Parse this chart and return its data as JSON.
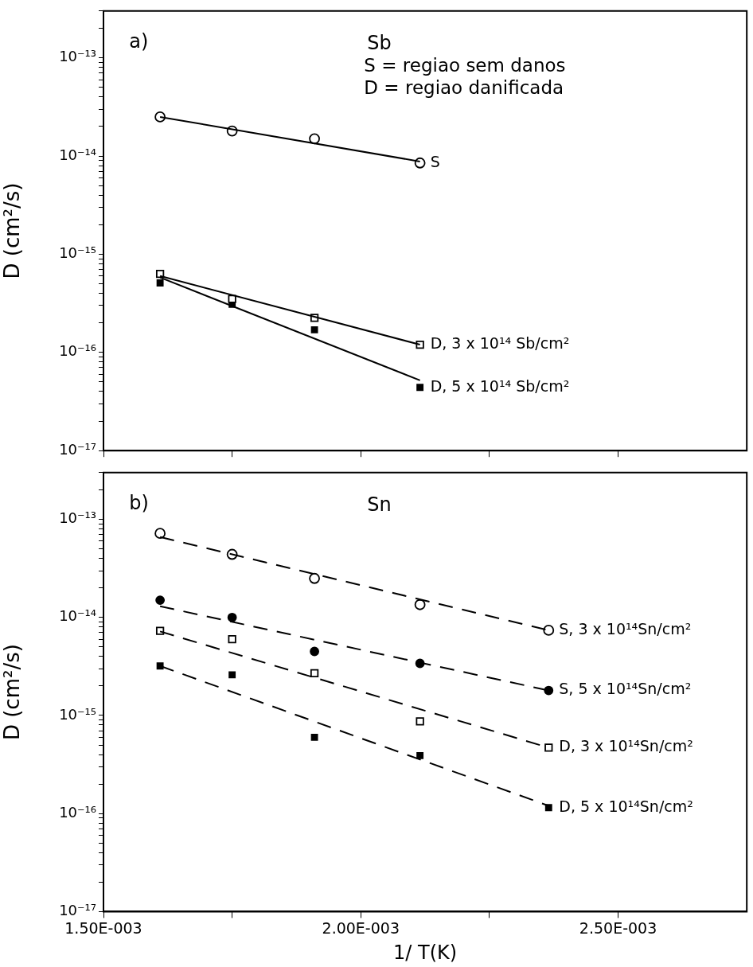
{
  "chart_data": [
    {
      "type": "scatter",
      "title": "Sb",
      "ylabel": "D (cm²/s)",
      "annotations": [
        "a)",
        "S = regiao sem danos",
        "D = regiao danificada"
      ],
      "log": "y",
      "grid": false,
      "legend": false,
      "tick_labels": "y",
      "xlim": [
        0.0015,
        0.00275
      ],
      "xticks": [
        {
          "value": 0.0015,
          "label": null
        },
        {
          "value": 0.00175,
          "label": null
        },
        {
          "value": 0.002,
          "label": null
        },
        {
          "value": 0.00225,
          "label": null
        },
        {
          "value": 0.0025,
          "label": null
        }
      ],
      "ylim": [
        1e-17,
        3e-13
      ],
      "yticks": [
        {
          "value": 1e-17,
          "label": "10⁻¹⁷"
        },
        {
          "value": 2e-17,
          "label": null
        },
        {
          "value": 3e-17,
          "label": null
        },
        {
          "value": 4e-17,
          "label": null
        },
        {
          "value": 5e-17,
          "label": null
        },
        {
          "value": 6e-17,
          "label": null
        },
        {
          "value": 7e-17,
          "label": null
        },
        {
          "value": 8e-17,
          "label": null
        },
        {
          "value": 9e-17,
          "label": null
        },
        {
          "value": 1e-16,
          "label": "10⁻¹⁶"
        },
        {
          "value": 2e-16,
          "label": null
        },
        {
          "value": 3e-16,
          "label": null
        },
        {
          "value": 4e-16,
          "label": null
        },
        {
          "value": 5e-16,
          "label": null
        },
        {
          "value": 6e-16,
          "label": null
        },
        {
          "value": 7e-16,
          "label": null
        },
        {
          "value": 8e-16,
          "label": null
        },
        {
          "value": 9e-16,
          "label": null
        },
        {
          "value": 1e-15,
          "label": "10⁻¹⁵"
        },
        {
          "value": 2e-15,
          "label": null
        },
        {
          "value": 3e-15,
          "label": null
        },
        {
          "value": 4e-15,
          "label": null
        },
        {
          "value": 5e-15,
          "label": null
        },
        {
          "value": 6e-15,
          "label": null
        },
        {
          "value": 7e-15,
          "label": null
        },
        {
          "value": 8e-15,
          "label": null
        },
        {
          "value": 9e-15,
          "label": null
        },
        {
          "value": 1e-14,
          "label": "10⁻¹⁴"
        },
        {
          "value": 2e-14,
          "label": null
        },
        {
          "value": 3e-14,
          "label": null
        },
        {
          "value": 4e-14,
          "label": null
        },
        {
          "value": 5e-14,
          "label": null
        },
        {
          "value": 6e-14,
          "label": null
        },
        {
          "value": 7e-14,
          "label": null
        },
        {
          "value": 8e-14,
          "label": null
        },
        {
          "value": 9e-14,
          "label": null
        },
        {
          "value": 1e-13,
          "label": "10⁻¹³"
        },
        {
          "value": 2e-13,
          "label": null
        },
        {
          "value": 3e-13,
          "label": null
        }
      ],
      "series": [
        {
          "name": "S",
          "color": "#000000",
          "marker": "circle-open",
          "x": [
            0.00161,
            0.00175,
            0.00191,
            0.002115
          ],
          "values": [
            2.5e-14,
            1.8e-14,
            1.5e-14,
            8.5e-15
          ]
        },
        {
          "name": "D, 3 x 10¹⁴ Sb/cm²",
          "color": "#000000",
          "marker": "square-open",
          "x": [
            0.00161,
            0.00175,
            0.00191,
            0.002115
          ],
          "values": [
            6.3e-16,
            3.5e-16,
            2.25e-16,
            1.2e-16
          ]
        },
        {
          "name": "D, 5 x 10¹⁴ Sb/cm²",
          "color": "#000000",
          "marker": "square",
          "x": [
            0.00161,
            0.00175,
            0.00191,
            0.002115
          ],
          "values": [
            5.1e-16,
            3.1e-16,
            1.7e-16,
            4.4e-17
          ]
        },
        {
          "type": "line",
          "color": "#000000",
          "marker": "none",
          "line_style": "solid",
          "x": [
            0.00161,
            0.002115
          ],
          "values": [
            2.5e-14,
            8.8e-15
          ]
        },
        {
          "type": "line",
          "color": "#000000",
          "marker": "none",
          "line_style": "solid",
          "x": [
            0.00161,
            0.002115
          ],
          "values": [
            6e-16,
            1.2e-16
          ]
        },
        {
          "type": "line",
          "color": "#000000",
          "marker": "none",
          "line_style": "solid",
          "x": [
            0.00161,
            0.002115
          ],
          "values": [
            5.8e-16,
            5.2e-17
          ]
        }
      ]
    },
    {
      "type": "scatter",
      "title": "Sn",
      "xlabel": "1/ T(K)",
      "ylabel": "D (cm²/s)",
      "annotations": [
        "b)"
      ],
      "log": "y",
      "grid": false,
      "legend": false,
      "xlim": [
        0.0015,
        0.00275
      ],
      "xticks": [
        {
          "value": 0.0015,
          "label": "1.50E-003"
        },
        {
          "value": 0.00175,
          "label": null
        },
        {
          "value": 0.002,
          "label": "2.00E-003"
        },
        {
          "value": 0.00225,
          "label": null
        },
        {
          "value": 0.0025,
          "label": "2.50E-003"
        }
      ],
      "ylim": [
        1e-17,
        3e-13
      ],
      "yticks": [
        {
          "value": 1e-17,
          "label": "10⁻¹⁷"
        },
        {
          "value": 2e-17,
          "label": null
        },
        {
          "value": 3e-17,
          "label": null
        },
        {
          "value": 4e-17,
          "label": null
        },
        {
          "value": 5e-17,
          "label": null
        },
        {
          "value": 6e-17,
          "label": null
        },
        {
          "value": 7e-17,
          "label": null
        },
        {
          "value": 8e-17,
          "label": null
        },
        {
          "value": 9e-17,
          "label": null
        },
        {
          "value": 1e-16,
          "label": "10⁻¹⁶"
        },
        {
          "value": 2e-16,
          "label": null
        },
        {
          "value": 3e-16,
          "label": null
        },
        {
          "value": 4e-16,
          "label": null
        },
        {
          "value": 5e-16,
          "label": null
        },
        {
          "value": 6e-16,
          "label": null
        },
        {
          "value": 7e-16,
          "label": null
        },
        {
          "value": 8e-16,
          "label": null
        },
        {
          "value": 9e-16,
          "label": null
        },
        {
          "value": 1e-15,
          "label": "10⁻¹⁵"
        },
        {
          "value": 2e-15,
          "label": null
        },
        {
          "value": 3e-15,
          "label": null
        },
        {
          "value": 4e-15,
          "label": null
        },
        {
          "value": 5e-15,
          "label": null
        },
        {
          "value": 6e-15,
          "label": null
        },
        {
          "value": 7e-15,
          "label": null
        },
        {
          "value": 8e-15,
          "label": null
        },
        {
          "value": 9e-15,
          "label": null
        },
        {
          "value": 1e-14,
          "label": "10⁻¹⁴"
        },
        {
          "value": 2e-14,
          "label": null
        },
        {
          "value": 3e-14,
          "label": null
        },
        {
          "value": 4e-14,
          "label": null
        },
        {
          "value": 5e-14,
          "label": null
        },
        {
          "value": 6e-14,
          "label": null
        },
        {
          "value": 7e-14,
          "label": null
        },
        {
          "value": 8e-14,
          "label": null
        },
        {
          "value": 9e-14,
          "label": null
        },
        {
          "value": 1e-13,
          "label": "10⁻¹³"
        },
        {
          "value": 2e-13,
          "label": null
        },
        {
          "value": 3e-13,
          "label": null
        }
      ],
      "series": [
        {
          "name": "S, 3 x 10¹⁴Sn/cm²",
          "color": "#000000",
          "marker": "circle-open",
          "x": [
            0.00161,
            0.00175,
            0.00191,
            0.002115,
            0.002365
          ],
          "values": [
            7.2e-14,
            4.4e-14,
            2.5e-14,
            1.35e-14,
            7.4e-15
          ]
        },
        {
          "name": "S, 5 x 10¹⁴Sn/cm²",
          "color": "#000000",
          "marker": "circle",
          "x": [
            0.00161,
            0.00175,
            0.00191,
            0.002115,
            0.002365
          ],
          "values": [
            1.5e-14,
            1e-14,
            4.5e-15,
            3.4e-15,
            1.8e-15
          ]
        },
        {
          "name": "D, 3 x 10¹⁴Sn/cm²",
          "color": "#000000",
          "marker": "square-open",
          "x": [
            0.00161,
            0.00175,
            0.00191,
            0.002115,
            0.002365
          ],
          "values": [
            7.3e-15,
            6e-15,
            2.7e-15,
            8.7e-16,
            4.7e-16
          ]
        },
        {
          "name": "D, 5 x 10¹⁴Sn/cm²",
          "color": "#000000",
          "marker": "square",
          "x": [
            0.00161,
            0.00175,
            0.00191,
            0.002115,
            0.002365
          ],
          "values": [
            3.2e-15,
            2.6e-15,
            6e-16,
            3.9e-16,
            1.15e-16
          ]
        },
        {
          "type": "line",
          "color": "#000000",
          "marker": "none",
          "line_style": "dashed",
          "x": [
            0.00161,
            0.002365
          ],
          "values": [
            6.6e-14,
            7.4e-15
          ]
        },
        {
          "type": "line",
          "color": "#000000",
          "marker": "none",
          "line_style": "dashed",
          "x": [
            0.00161,
            0.002365
          ],
          "values": [
            1.3e-14,
            1.8e-15
          ]
        },
        {
          "type": "line",
          "color": "#000000",
          "marker": "none",
          "line_style": "dashed",
          "x": [
            0.00161,
            0.002365
          ],
          "values": [
            7.2e-15,
            4.7e-16
          ]
        },
        {
          "type": "line",
          "color": "#000000",
          "marker": "none",
          "line_style": "dashed",
          "x": [
            0.00161,
            0.002365
          ],
          "values": [
            3.2e-15,
            1.2e-16
          ]
        }
      ]
    }
  ]
}
